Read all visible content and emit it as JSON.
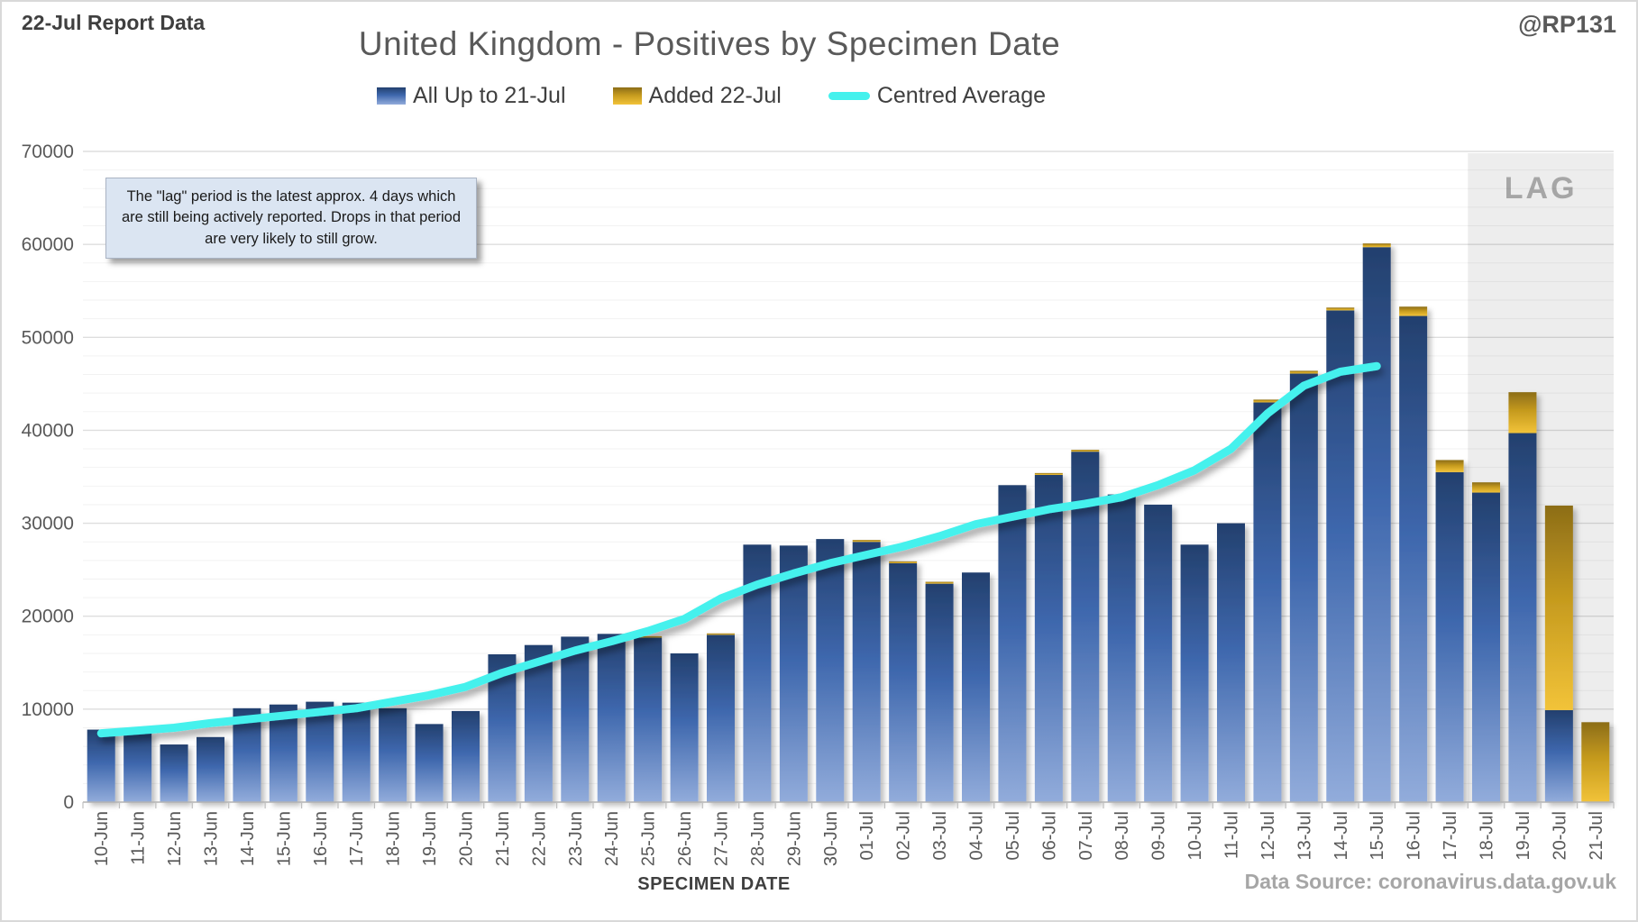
{
  "header": {
    "report_label": "22-Jul Report Data",
    "title": "United Kingdom - Positives by Specimen Date",
    "handle": "@RP131"
  },
  "legend": [
    {
      "label": "All Up to 21-Jul",
      "swatch": "blue-gradient-bar"
    },
    {
      "label": "Added 22-Jul",
      "swatch": "gold-gradient-bar"
    },
    {
      "label": "Centred Average",
      "swatch": "cyan-line"
    }
  ],
  "annotation": {
    "text": "The \"lag\" period is the latest approx. 4 days which are still being actively reported. Drops in that period are very likely to still grow."
  },
  "lag_label": "LAG",
  "x_axis_title": "SPECIMEN DATE",
  "data_source": "Data Source: coronavirus.data.gov.uk",
  "colors": {
    "bar_blue_top": "#23406e",
    "bar_blue_mid": "#3e67ad",
    "bar_blue_bottom": "#92acdb",
    "bar_gold_top": "#8c6d18",
    "bar_gold_mid": "#c59a1e",
    "bar_gold_bottom": "#f2c339",
    "average_line": "#44f1ed",
    "lag_band": "#ededed",
    "lag_text": "#a6a6a6",
    "axis_text": "#595959"
  },
  "chart_data": {
    "type": "bar",
    "subtype": "stacked-bars-with-line",
    "title": "United Kingdom - Positives by Specimen Date",
    "xlabel": "SPECIMEN DATE",
    "ylabel": "",
    "ylim": [
      0,
      70000
    ],
    "ytick_major": 10000,
    "ytick_minor": 2000,
    "grid": true,
    "legend_position": "top-center",
    "lag_start_category": "18-Jul",
    "categories": [
      "10-Jun",
      "11-Jun",
      "12-Jun",
      "13-Jun",
      "14-Jun",
      "15-Jun",
      "16-Jun",
      "17-Jun",
      "18-Jun",
      "19-Jun",
      "20-Jun",
      "21-Jun",
      "22-Jun",
      "23-Jun",
      "24-Jun",
      "25-Jun",
      "26-Jun",
      "27-Jun",
      "28-Jun",
      "29-Jun",
      "30-Jun",
      "01-Jul",
      "02-Jul",
      "03-Jul",
      "04-Jul",
      "05-Jul",
      "06-Jul",
      "07-Jul",
      "08-Jul",
      "09-Jul",
      "10-Jul",
      "11-Jul",
      "12-Jul",
      "13-Jul",
      "14-Jul",
      "15-Jul",
      "16-Jul",
      "17-Jul",
      "18-Jul",
      "19-Jul",
      "20-Jul",
      "21-Jul"
    ],
    "series": [
      {
        "name": "All Up to 21-Jul",
        "values": [
          7800,
          7500,
          6200,
          7000,
          10100,
          10500,
          10800,
          10700,
          10100,
          8400,
          9800,
          15900,
          16900,
          17800,
          18100,
          17700,
          16000,
          18000,
          27700,
          27600,
          28300,
          28000,
          25700,
          23500,
          24700,
          34100,
          35200,
          37700,
          33100,
          32000,
          27700,
          30000,
          43000,
          46100,
          52900,
          59700,
          52300,
          35500,
          33300,
          39700,
          9900,
          0
        ]
      },
      {
        "name": "Added 22-Jul",
        "values": [
          0,
          0,
          0,
          0,
          0,
          0,
          0,
          0,
          0,
          0,
          0,
          0,
          0,
          0,
          0,
          150,
          0,
          150,
          0,
          0,
          0,
          200,
          200,
          200,
          0,
          0,
          200,
          200,
          0,
          0,
          0,
          0,
          300,
          300,
          300,
          400,
          1000,
          1300,
          1100,
          4400,
          22000,
          8600
        ]
      }
    ],
    "line": {
      "name": "Centred Average",
      "ends_at_category": "15-Jul",
      "values": [
        7400,
        7700,
        8000,
        8500,
        8900,
        9300,
        9700,
        10100,
        10800,
        11500,
        12400,
        13900,
        15100,
        16300,
        17300,
        18400,
        19700,
        21900,
        23400,
        24600,
        25700,
        26600,
        27500,
        28600,
        29900,
        30700,
        31500,
        32100,
        32800,
        34100,
        35700,
        38000,
        41800,
        44800,
        46300,
        46900
      ]
    }
  }
}
